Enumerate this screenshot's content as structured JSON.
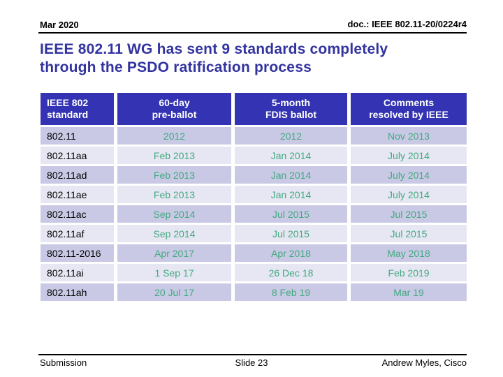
{
  "slide": {
    "header": {
      "date": "Mar 2020",
      "doc": "doc.: IEEE 802.11-20/0224r4"
    },
    "title": "IEEE 802.11 WG has sent 9 standards completely\nthrough the PSDO ratification process",
    "table": {
      "columns": [
        "IEEE 802\nstandard",
        "60-day\npre-ballot",
        "5-month\nFDIS ballot",
        "Comments\nresolved by IEEE"
      ],
      "rows": [
        [
          "802.11",
          "2012",
          "2012",
          "Nov 2013"
        ],
        [
          "802.11aa",
          "Feb 2013",
          "Jan 2014",
          "July 2014"
        ],
        [
          "802.11ad",
          "Feb 2013",
          "Jan 2014",
          "July 2014"
        ],
        [
          "802.11ae",
          "Feb 2013",
          "Jan 2014",
          "July 2014"
        ],
        [
          "802.11ac",
          "Sep 2014",
          "Jul 2015",
          "Jul 2015"
        ],
        [
          "802.11af",
          "Sep 2014",
          "Jul 2015",
          "Jul 2015"
        ],
        [
          "802.11-2016",
          "Apr 2017",
          "Apr 2018",
          "May 2018"
        ],
        [
          "802.11ai",
          "1 Sep 17",
          "26 Dec 18",
          "Feb 2019"
        ],
        [
          "802.11ah",
          "20 Jul 17",
          "8 Feb 19",
          "Mar 19"
        ]
      ]
    },
    "footer": {
      "left": "Submission",
      "center": "Slide 23",
      "right": "Andrew Myles, Cisco"
    },
    "colors": {
      "title_text": "#3333a0",
      "table_header_bg": "#3333b3",
      "table_header_text": "#ffffff",
      "row_dark_bg": "#c9c9e6",
      "row_light_bg": "#e7e7f3",
      "date_text_green": "#42a97f",
      "standard_text": "#000000"
    }
  }
}
